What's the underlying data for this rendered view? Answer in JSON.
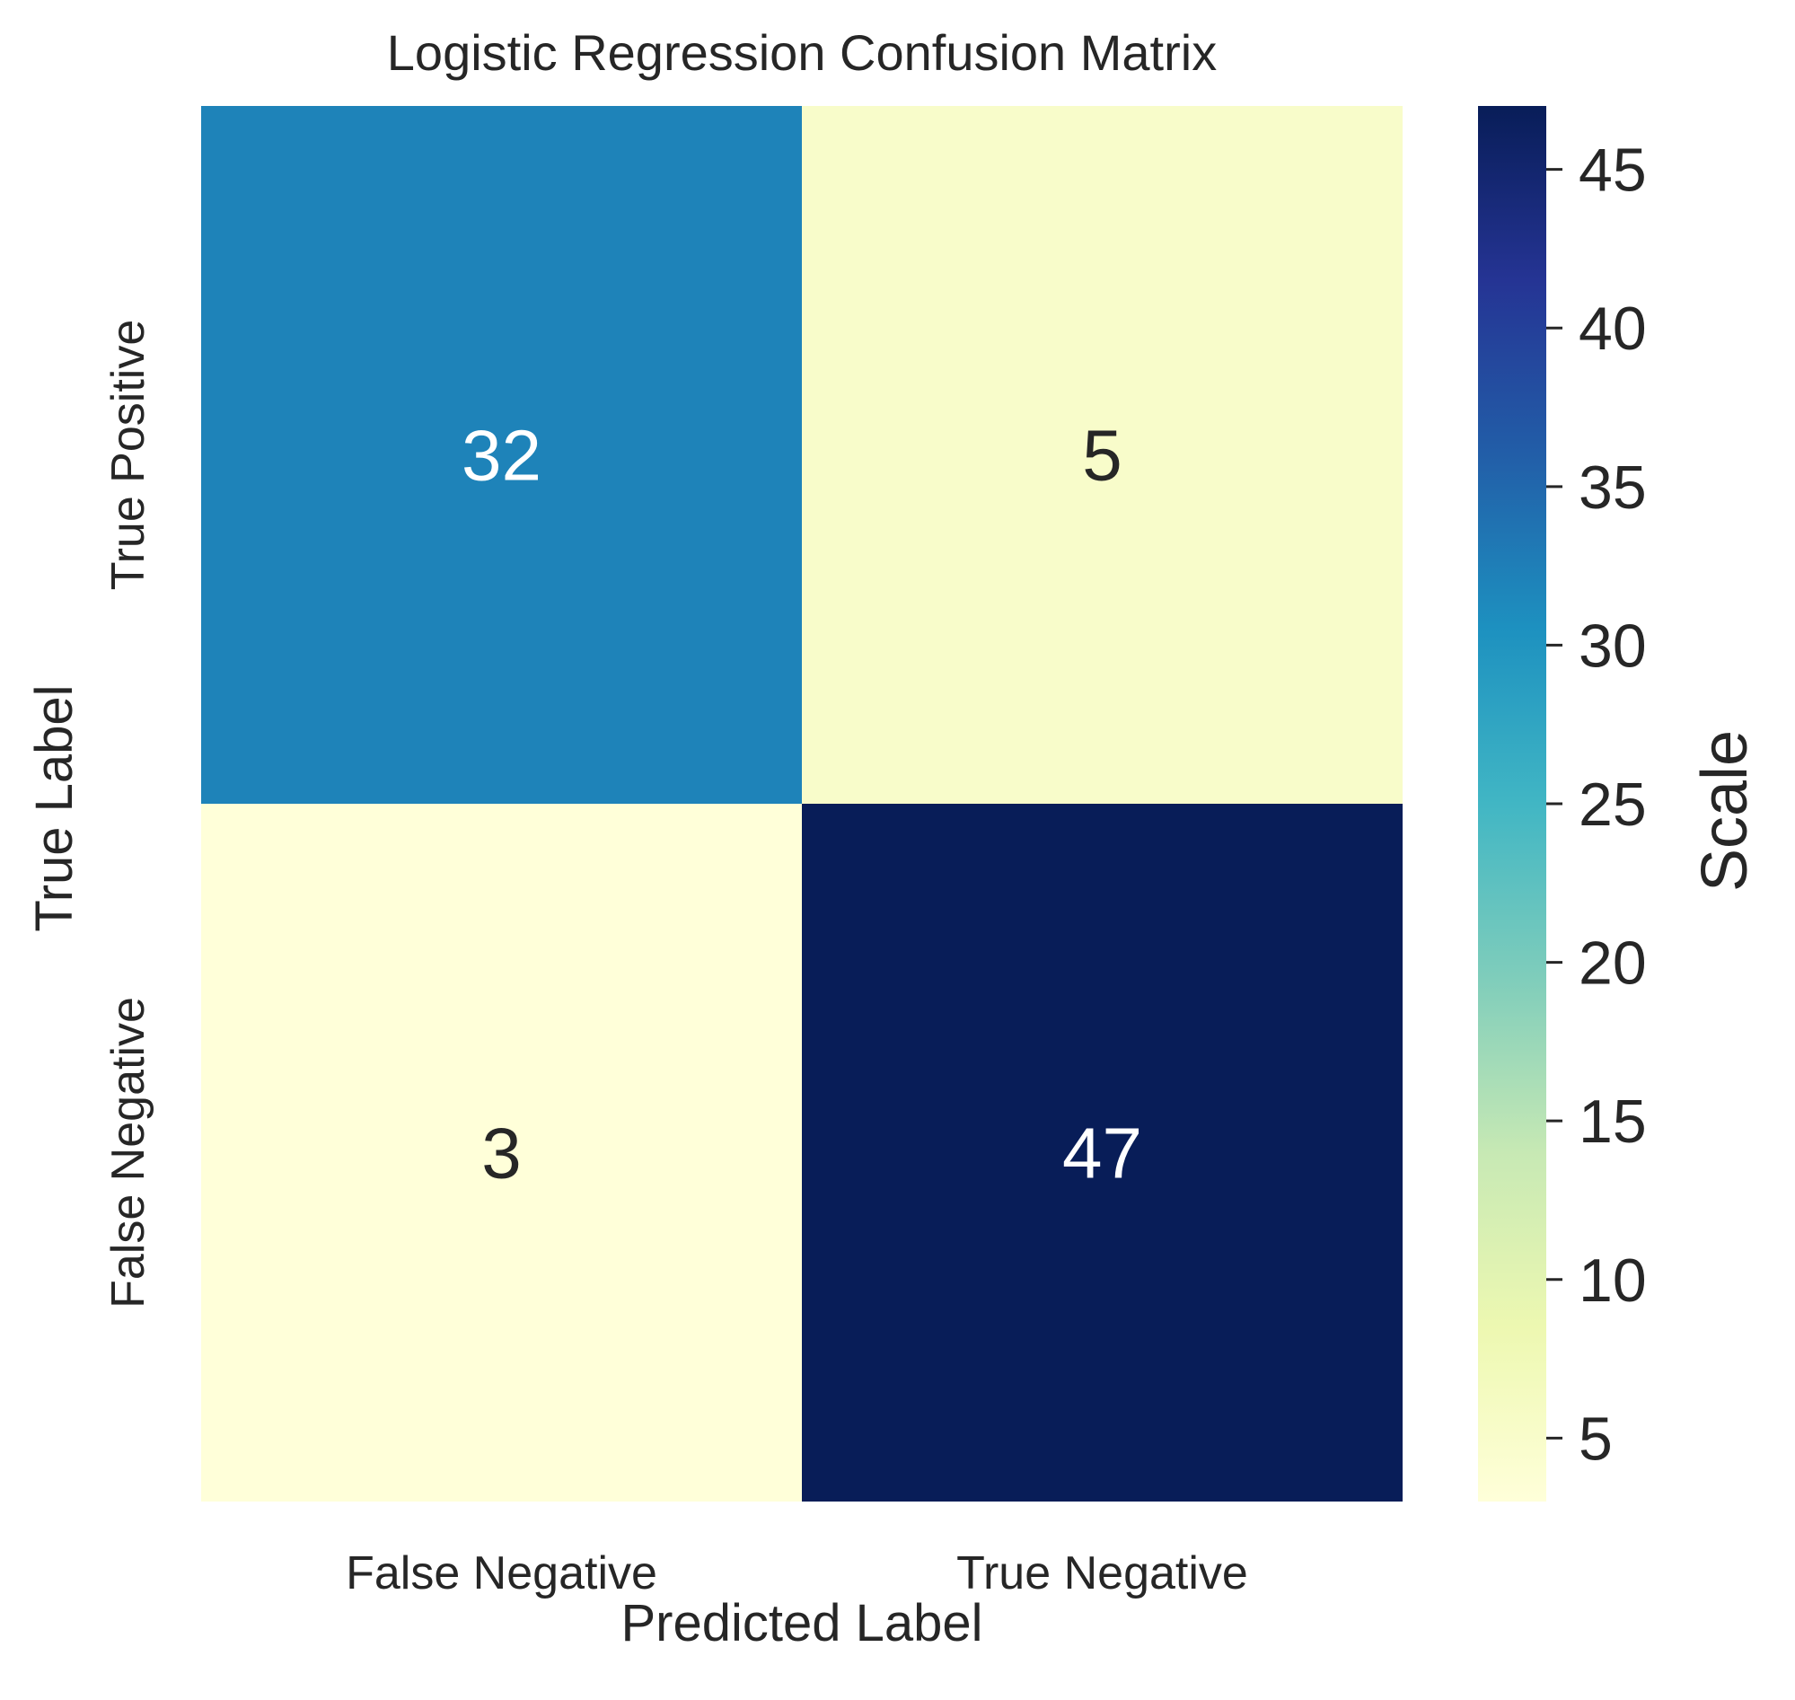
{
  "chart_data": {
    "type": "heatmap",
    "title": "Logistic Regression Confusion Matrix",
    "xlabel": "Predicted Label",
    "ylabel": "True Label",
    "x_categories": [
      "False Negative",
      "True Negative"
    ],
    "y_categories": [
      "True Positive",
      "False Negative"
    ],
    "values": [
      [
        32,
        5
      ],
      [
        3,
        47
      ]
    ],
    "colormap": "YlGnBu",
    "colorbar": {
      "label": "Scale",
      "range": [
        3,
        47
      ],
      "ticks": [
        5,
        10,
        15,
        20,
        25,
        30,
        35,
        40,
        45
      ]
    },
    "annotation_colors": {
      "light_text": "#ffffff",
      "dark_text": "#262626"
    }
  }
}
